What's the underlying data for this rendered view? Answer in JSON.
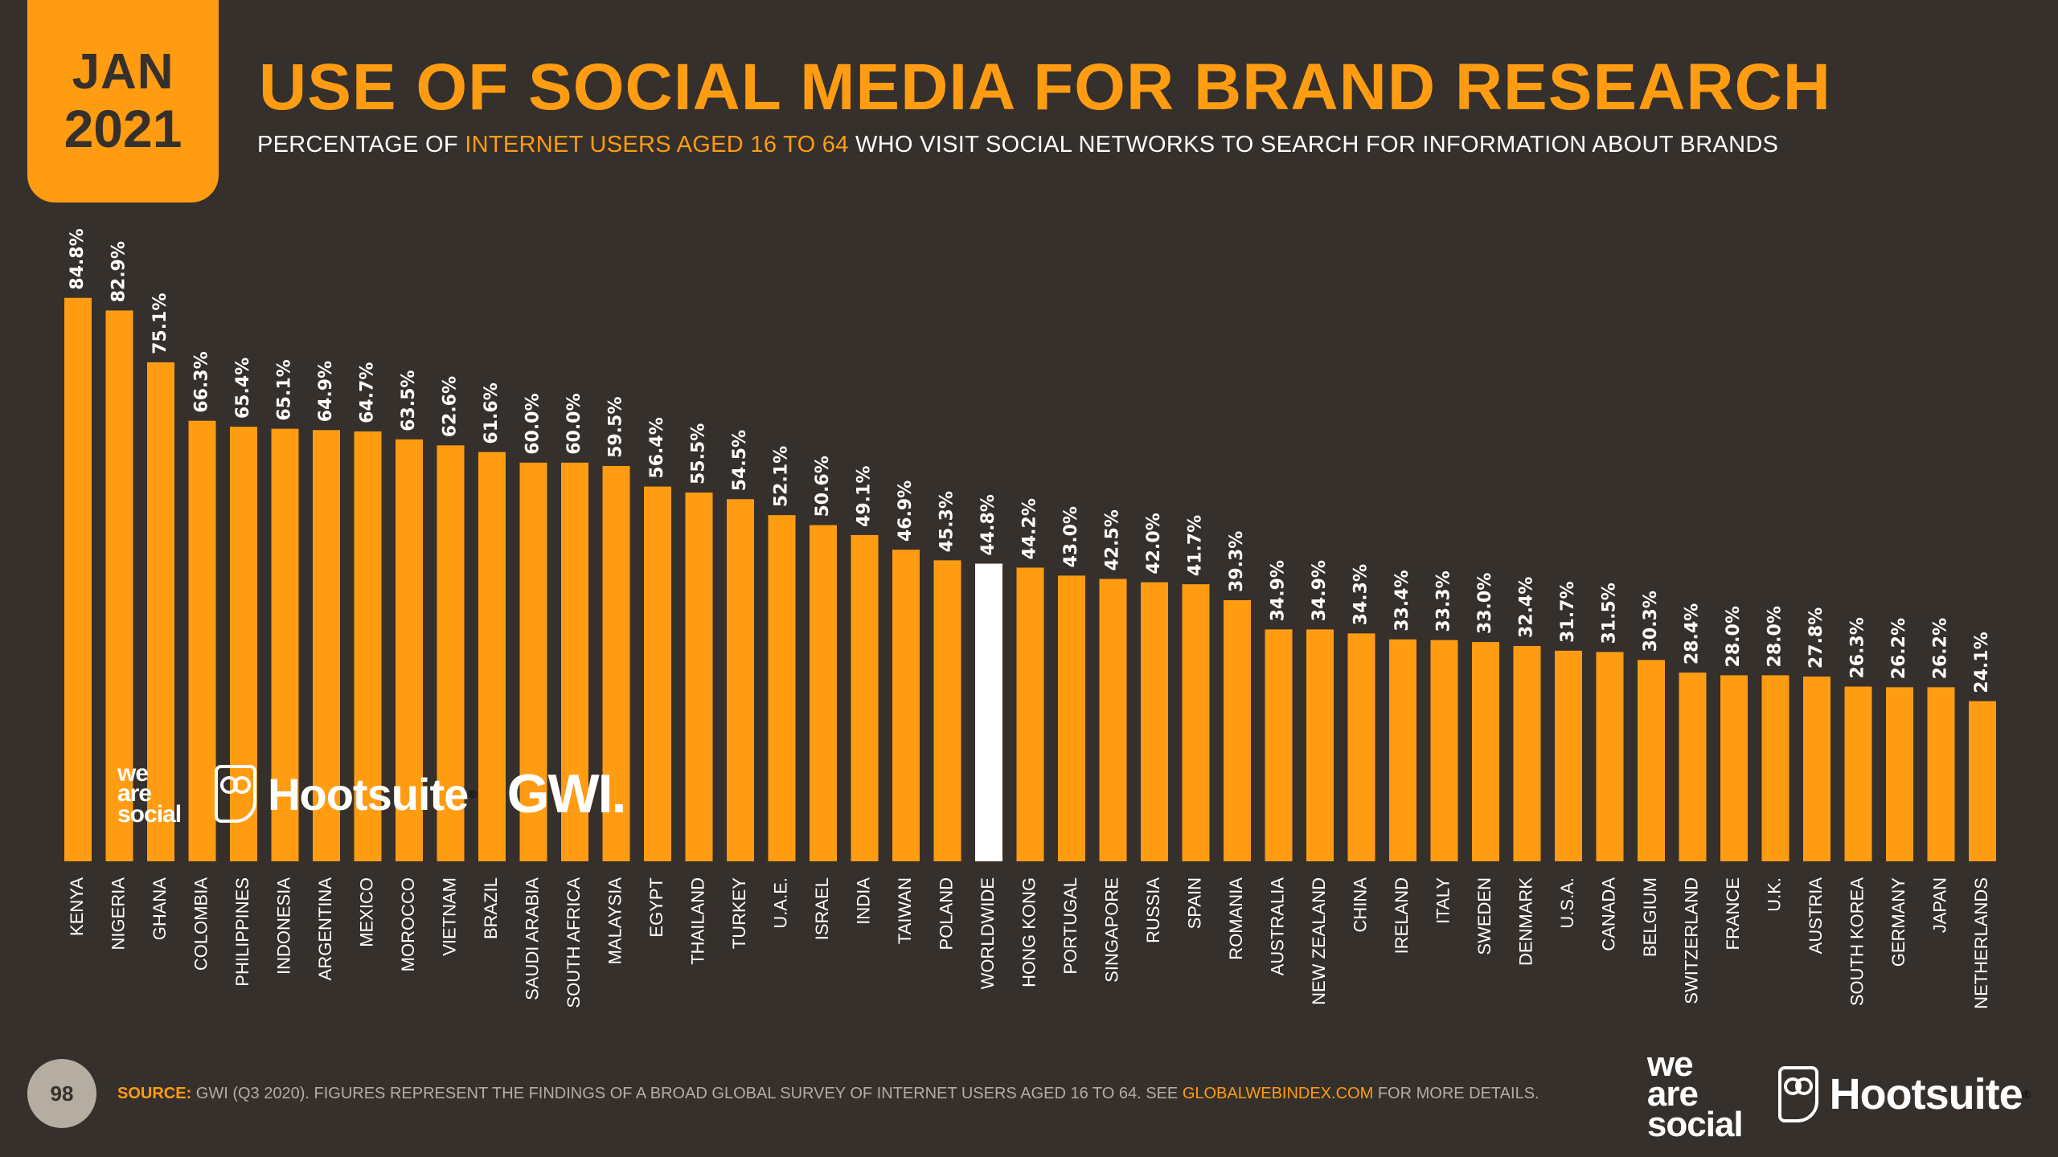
{
  "badge": {
    "month": "JAN",
    "year": "2021"
  },
  "header": {
    "title": "USE OF SOCIAL MEDIA FOR BRAND RESEARCH",
    "subtitle_pre": "PERCENTAGE OF ",
    "subtitle_highlight": "INTERNET USERS AGED 16 TO 64",
    "subtitle_post": " WHO VISIT SOCIAL NETWORKS TO SEARCH FOR INFORMATION ABOUT BRANDS"
  },
  "colors": {
    "background": "#35302c",
    "accent": "#ff9c12",
    "highlight_bar": "#ffffff",
    "muted": "#b5aca2"
  },
  "chart_data": {
    "type": "bar",
    "title": "USE OF SOCIAL MEDIA FOR BRAND RESEARCH",
    "xlabel": "",
    "ylabel": "",
    "unit": "%",
    "ylim": [
      0,
      100
    ],
    "grid": false,
    "highlight_category": "WORLDWIDE",
    "categories": [
      "KENYA",
      "NIGERIA",
      "GHANA",
      "COLOMBIA",
      "PHILIPPINES",
      "INDONESIA",
      "ARGENTINA",
      "MEXICO",
      "MOROCCO",
      "VIETNAM",
      "BRAZIL",
      "SAUDI ARABIA",
      "SOUTH AFRICA",
      "MALAYSIA",
      "EGYPT",
      "THAILAND",
      "TURKEY",
      "U.A.E.",
      "ISRAEL",
      "INDIA",
      "TAIWAN",
      "POLAND",
      "WORLDWIDE",
      "HONG KONG",
      "PORTUGAL",
      "SINGAPORE",
      "RUSSIA",
      "SPAIN",
      "ROMANIA",
      "AUSTRALIA",
      "NEW ZEALAND",
      "CHINA",
      "IRELAND",
      "ITALY",
      "SWEDEN",
      "DENMARK",
      "U.S.A.",
      "CANADA",
      "BELGIUM",
      "SWITZERLAND",
      "FRANCE",
      "U.K.",
      "AUSTRIA",
      "SOUTH KOREA",
      "GERMANY",
      "JAPAN",
      "NETHERLANDS"
    ],
    "values": [
      84.8,
      82.9,
      75.1,
      66.3,
      65.4,
      65.1,
      64.9,
      64.7,
      63.5,
      62.6,
      61.6,
      60.0,
      60.0,
      59.5,
      56.4,
      55.5,
      54.5,
      52.1,
      50.6,
      49.1,
      46.9,
      45.3,
      44.8,
      44.2,
      43.0,
      42.5,
      42.0,
      41.7,
      39.3,
      34.9,
      34.9,
      34.3,
      33.4,
      33.3,
      33.0,
      32.4,
      31.7,
      31.5,
      30.3,
      28.4,
      28.0,
      28.0,
      27.8,
      26.3,
      26.2,
      26.2,
      24.1
    ],
    "value_labels": [
      "84.8%",
      "82.9%",
      "75.1%",
      "66.3%",
      "65.4%",
      "65.1%",
      "64.9%",
      "64.7%",
      "63.5%",
      "62.6%",
      "61.6%",
      "60.0%",
      "60.0%",
      "59.5%",
      "56.4%",
      "55.5%",
      "54.5%",
      "52.1%",
      "50.6%",
      "49.1%",
      "46.9%",
      "45.3%",
      "44.8%",
      "44.2%",
      "43.0%",
      "42.5%",
      "42.0%",
      "41.7%",
      "39.3%",
      "34.9%",
      "34.9%",
      "34.3%",
      "33.4%",
      "33.3%",
      "33.0%",
      "32.4%",
      "31.7%",
      "31.5%",
      "30.3%",
      "28.4%",
      "28.0%",
      "28.0%",
      "27.8%",
      "26.3%",
      "26.2%",
      "26.2%",
      "24.1%"
    ]
  },
  "logos": {
    "we_are_social": [
      "we",
      "are",
      "social"
    ],
    "hootsuite": "Hootsuite",
    "reg_mark": "®",
    "gwi": "GWI."
  },
  "footer": {
    "page_number": "98",
    "source_label": "SOURCE:",
    "source_text": " GWI (Q3 2020). FIGURES REPRESENT THE FINDINGS OF A BROAD GLOBAL SURVEY OF INTERNET USERS AGED 16 TO 64. SEE ",
    "source_link": "GLOBALWEBINDEX.COM",
    "source_tail": " FOR MORE DETAILS."
  }
}
